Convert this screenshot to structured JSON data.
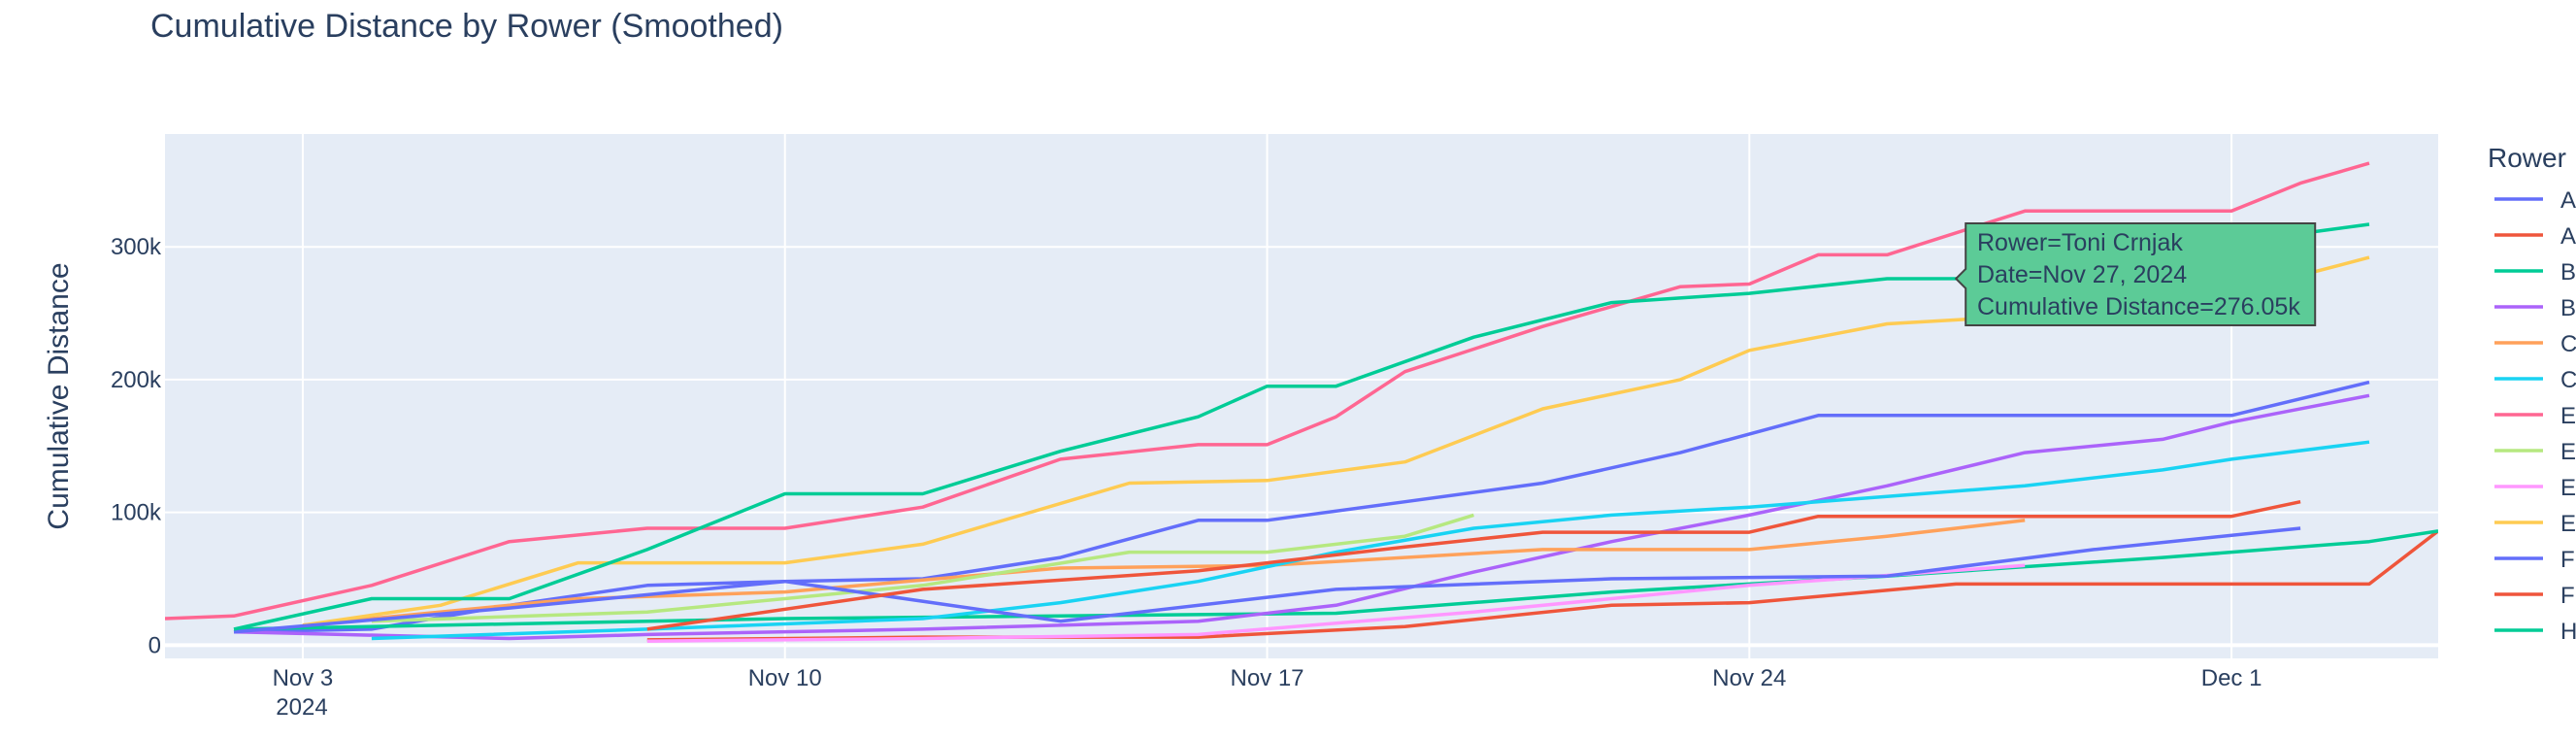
{
  "chart_data": {
    "type": "line",
    "title": "Cumulative Distance by Rower (Smoothed)",
    "xlabel": "",
    "ylabel": "Cumulative Distance",
    "x_tick_labels": [
      "Nov 3",
      "Nov 10",
      "Nov 17",
      "Nov 24",
      "Dec 1"
    ],
    "x_tick_dates": [
      "2024-11-03",
      "2024-11-10",
      "2024-11-17",
      "2024-11-24",
      "2024-12-01"
    ],
    "x_year_label": "2024",
    "xlim": [
      "2024-11-01",
      "2024-12-04"
    ],
    "y_tick_values": [
      0,
      100000,
      200000,
      300000
    ],
    "y_tick_labels": [
      "0",
      "100k",
      "200k",
      "300k"
    ],
    "ylim": [
      -10000,
      385000
    ],
    "grid": true,
    "legend_title": "Rower",
    "legend_position": "right",
    "plot_bg": "#e5ecf6",
    "series": [
      {
        "name": "A",
        "color": "#636efa",
        "x": [
          "2024-11-02",
          "2024-11-04",
          "2024-11-06",
          "2024-11-08",
          "2024-11-10",
          "2024-11-12",
          "2024-11-14",
          "2024-11-16",
          "2024-11-17",
          "2024-11-19",
          "2024-11-21",
          "2024-11-23",
          "2024-11-25",
          "2024-11-28",
          "2024-12-01",
          "2024-12-03"
        ],
        "y": [
          10000,
          12000,
          30000,
          45000,
          48000,
          50000,
          66000,
          94000,
          94000,
          108000,
          122000,
          145000,
          173000,
          173000,
          173000,
          198000
        ]
      },
      {
        "name": "A",
        "color": "#ef553b",
        "x": [
          "2024-11-08",
          "2024-11-12",
          "2024-11-16",
          "2024-11-19",
          "2024-11-22",
          "2024-11-24",
          "2024-11-27",
          "2024-11-30",
          "2024-12-03",
          "2024-12-04"
        ],
        "y": [
          4000,
          6000,
          6000,
          14000,
          30000,
          32000,
          46000,
          46000,
          46000,
          86000
        ]
      },
      {
        "name": "B",
        "color": "#00cc96",
        "x": [
          "2024-11-02",
          "2024-11-06",
          "2024-11-10",
          "2024-11-14",
          "2024-11-18",
          "2024-11-22",
          "2024-11-26",
          "2024-11-30",
          "2024-12-03",
          "2024-12-04"
        ],
        "y": [
          12000,
          16000,
          20000,
          22000,
          24000,
          40000,
          52000,
          66000,
          78000,
          86000
        ]
      },
      {
        "name": "B",
        "color": "#ab63fa",
        "x": [
          "2024-11-02",
          "2024-11-06",
          "2024-11-08",
          "2024-11-12",
          "2024-11-16",
          "2024-11-18",
          "2024-11-20",
          "2024-11-22",
          "2024-11-24",
          "2024-11-26",
          "2024-11-28",
          "2024-11-30",
          "2024-12-01",
          "2024-12-03"
        ],
        "y": [
          10000,
          5000,
          8000,
          12000,
          18000,
          30000,
          55000,
          78000,
          98000,
          120000,
          145000,
          155000,
          168000,
          188000
        ]
      },
      {
        "name": "C",
        "color": "#FFA15A",
        "x": [
          "2024-11-03",
          "2024-11-07",
          "2024-11-10",
          "2024-11-14",
          "2024-11-17",
          "2024-11-21",
          "2024-11-24",
          "2024-11-26",
          "2024-11-28"
        ],
        "y": [
          15000,
          35000,
          40000,
          58000,
          60000,
          72000,
          72000,
          82000,
          94000
        ]
      },
      {
        "name": "C",
        "color": "#19d3f3",
        "x": [
          "2024-11-04",
          "2024-11-08",
          "2024-11-12",
          "2024-11-14",
          "2024-11-16",
          "2024-11-18",
          "2024-11-20",
          "2024-11-22",
          "2024-11-24",
          "2024-11-26",
          "2024-11-28",
          "2024-11-30",
          "2024-12-01",
          "2024-12-03"
        ],
        "y": [
          5000,
          12000,
          20000,
          32000,
          48000,
          70000,
          88000,
          98000,
          104000,
          112000,
          120000,
          132000,
          140000,
          153000
        ]
      },
      {
        "name": "E",
        "color": "#FF6692",
        "x": [
          "2024-11-01",
          "2024-11-02",
          "2024-11-04",
          "2024-11-06",
          "2024-11-08",
          "2024-11-10",
          "2024-11-12",
          "2024-11-14",
          "2024-11-16",
          "2024-11-17",
          "2024-11-18",
          "2024-11-19",
          "2024-11-21",
          "2024-11-23",
          "2024-11-24",
          "2024-11-25",
          "2024-11-26",
          "2024-11-28",
          "2024-11-30",
          "2024-12-01",
          "2024-12-02",
          "2024-12-03"
        ],
        "y": [
          20000,
          22000,
          45000,
          78000,
          88000,
          88000,
          104000,
          140000,
          151000,
          151000,
          172000,
          206000,
          240000,
          270000,
          272000,
          294000,
          294000,
          327000,
          327000,
          327000,
          348000,
          363000
        ]
      },
      {
        "name": "E",
        "color": "#B6E880",
        "x": [
          "2024-11-04",
          "2024-11-08",
          "2024-11-12",
          "2024-11-15",
          "2024-11-17",
          "2024-11-19",
          "2024-11-20"
        ],
        "y": [
          18000,
          25000,
          45000,
          70000,
          70000,
          82000,
          98000
        ]
      },
      {
        "name": "E",
        "color": "#FF97FF",
        "x": [
          "2024-11-08",
          "2024-11-12",
          "2024-11-16",
          "2024-11-20",
          "2024-11-24",
          "2024-11-28"
        ],
        "y": [
          3000,
          5000,
          8000,
          25000,
          45000,
          60000
        ]
      },
      {
        "name": "E",
        "color": "#FECB52",
        "x": [
          "2024-11-03",
          "2024-11-05",
          "2024-11-07",
          "2024-11-10",
          "2024-11-12",
          "2024-11-15",
          "2024-11-17",
          "2024-11-19",
          "2024-11-21",
          "2024-11-23",
          "2024-11-24",
          "2024-11-26",
          "2024-11-28",
          "2024-12-01",
          "2024-12-03"
        ],
        "y": [
          15000,
          30000,
          62000,
          62000,
          76000,
          122000,
          124000,
          138000,
          178000,
          200000,
          222000,
          242000,
          248000,
          265000,
          292000
        ]
      },
      {
        "name": "F",
        "color": "#636efa",
        "x": [
          "2024-11-02",
          "2024-11-06",
          "2024-11-10",
          "2024-11-14",
          "2024-11-18",
          "2024-11-22",
          "2024-11-26",
          "2024-11-29",
          "2024-12-02"
        ],
        "y": [
          10000,
          28000,
          48000,
          18000,
          42000,
          50000,
          52000,
          72000,
          88000
        ]
      },
      {
        "name": "F",
        "color": "#EF553B",
        "x": [
          "2024-11-08",
          "2024-11-12",
          "2024-11-16",
          "2024-11-19",
          "2024-11-21",
          "2024-11-24",
          "2024-11-25",
          "2024-11-28",
          "2024-12-01",
          "2024-12-02"
        ],
        "y": [
          12000,
          42000,
          56000,
          74000,
          85000,
          85000,
          97000,
          97000,
          97000,
          108000
        ]
      },
      {
        "name": "H",
        "color": "#00CC96",
        "x": [
          "2024-11-02",
          "2024-11-04",
          "2024-11-06",
          "2024-11-08",
          "2024-11-10",
          "2024-11-12",
          "2024-11-14",
          "2024-11-16",
          "2024-11-17",
          "2024-11-18",
          "2024-11-20",
          "2024-11-22",
          "2024-11-24",
          "2024-11-26",
          "2024-11-27",
          "2024-11-29",
          "2024-12-01",
          "2024-12-02",
          "2024-12-03"
        ],
        "y": [
          12000,
          35000,
          35000,
          72000,
          114000,
          114000,
          146000,
          172000,
          195000,
          195000,
          232000,
          258000,
          265000,
          276000,
          276050,
          290000,
          300000,
          310000,
          317000
        ]
      }
    ],
    "hover": {
      "rower_line": "Rower=Toni Crnjak",
      "date_line": "Date=Nov 27, 2024",
      "value_line": "Cumulative Distance=276.05k",
      "x": "2024-11-27",
      "y": 276050,
      "color": "#5ccb97"
    }
  }
}
